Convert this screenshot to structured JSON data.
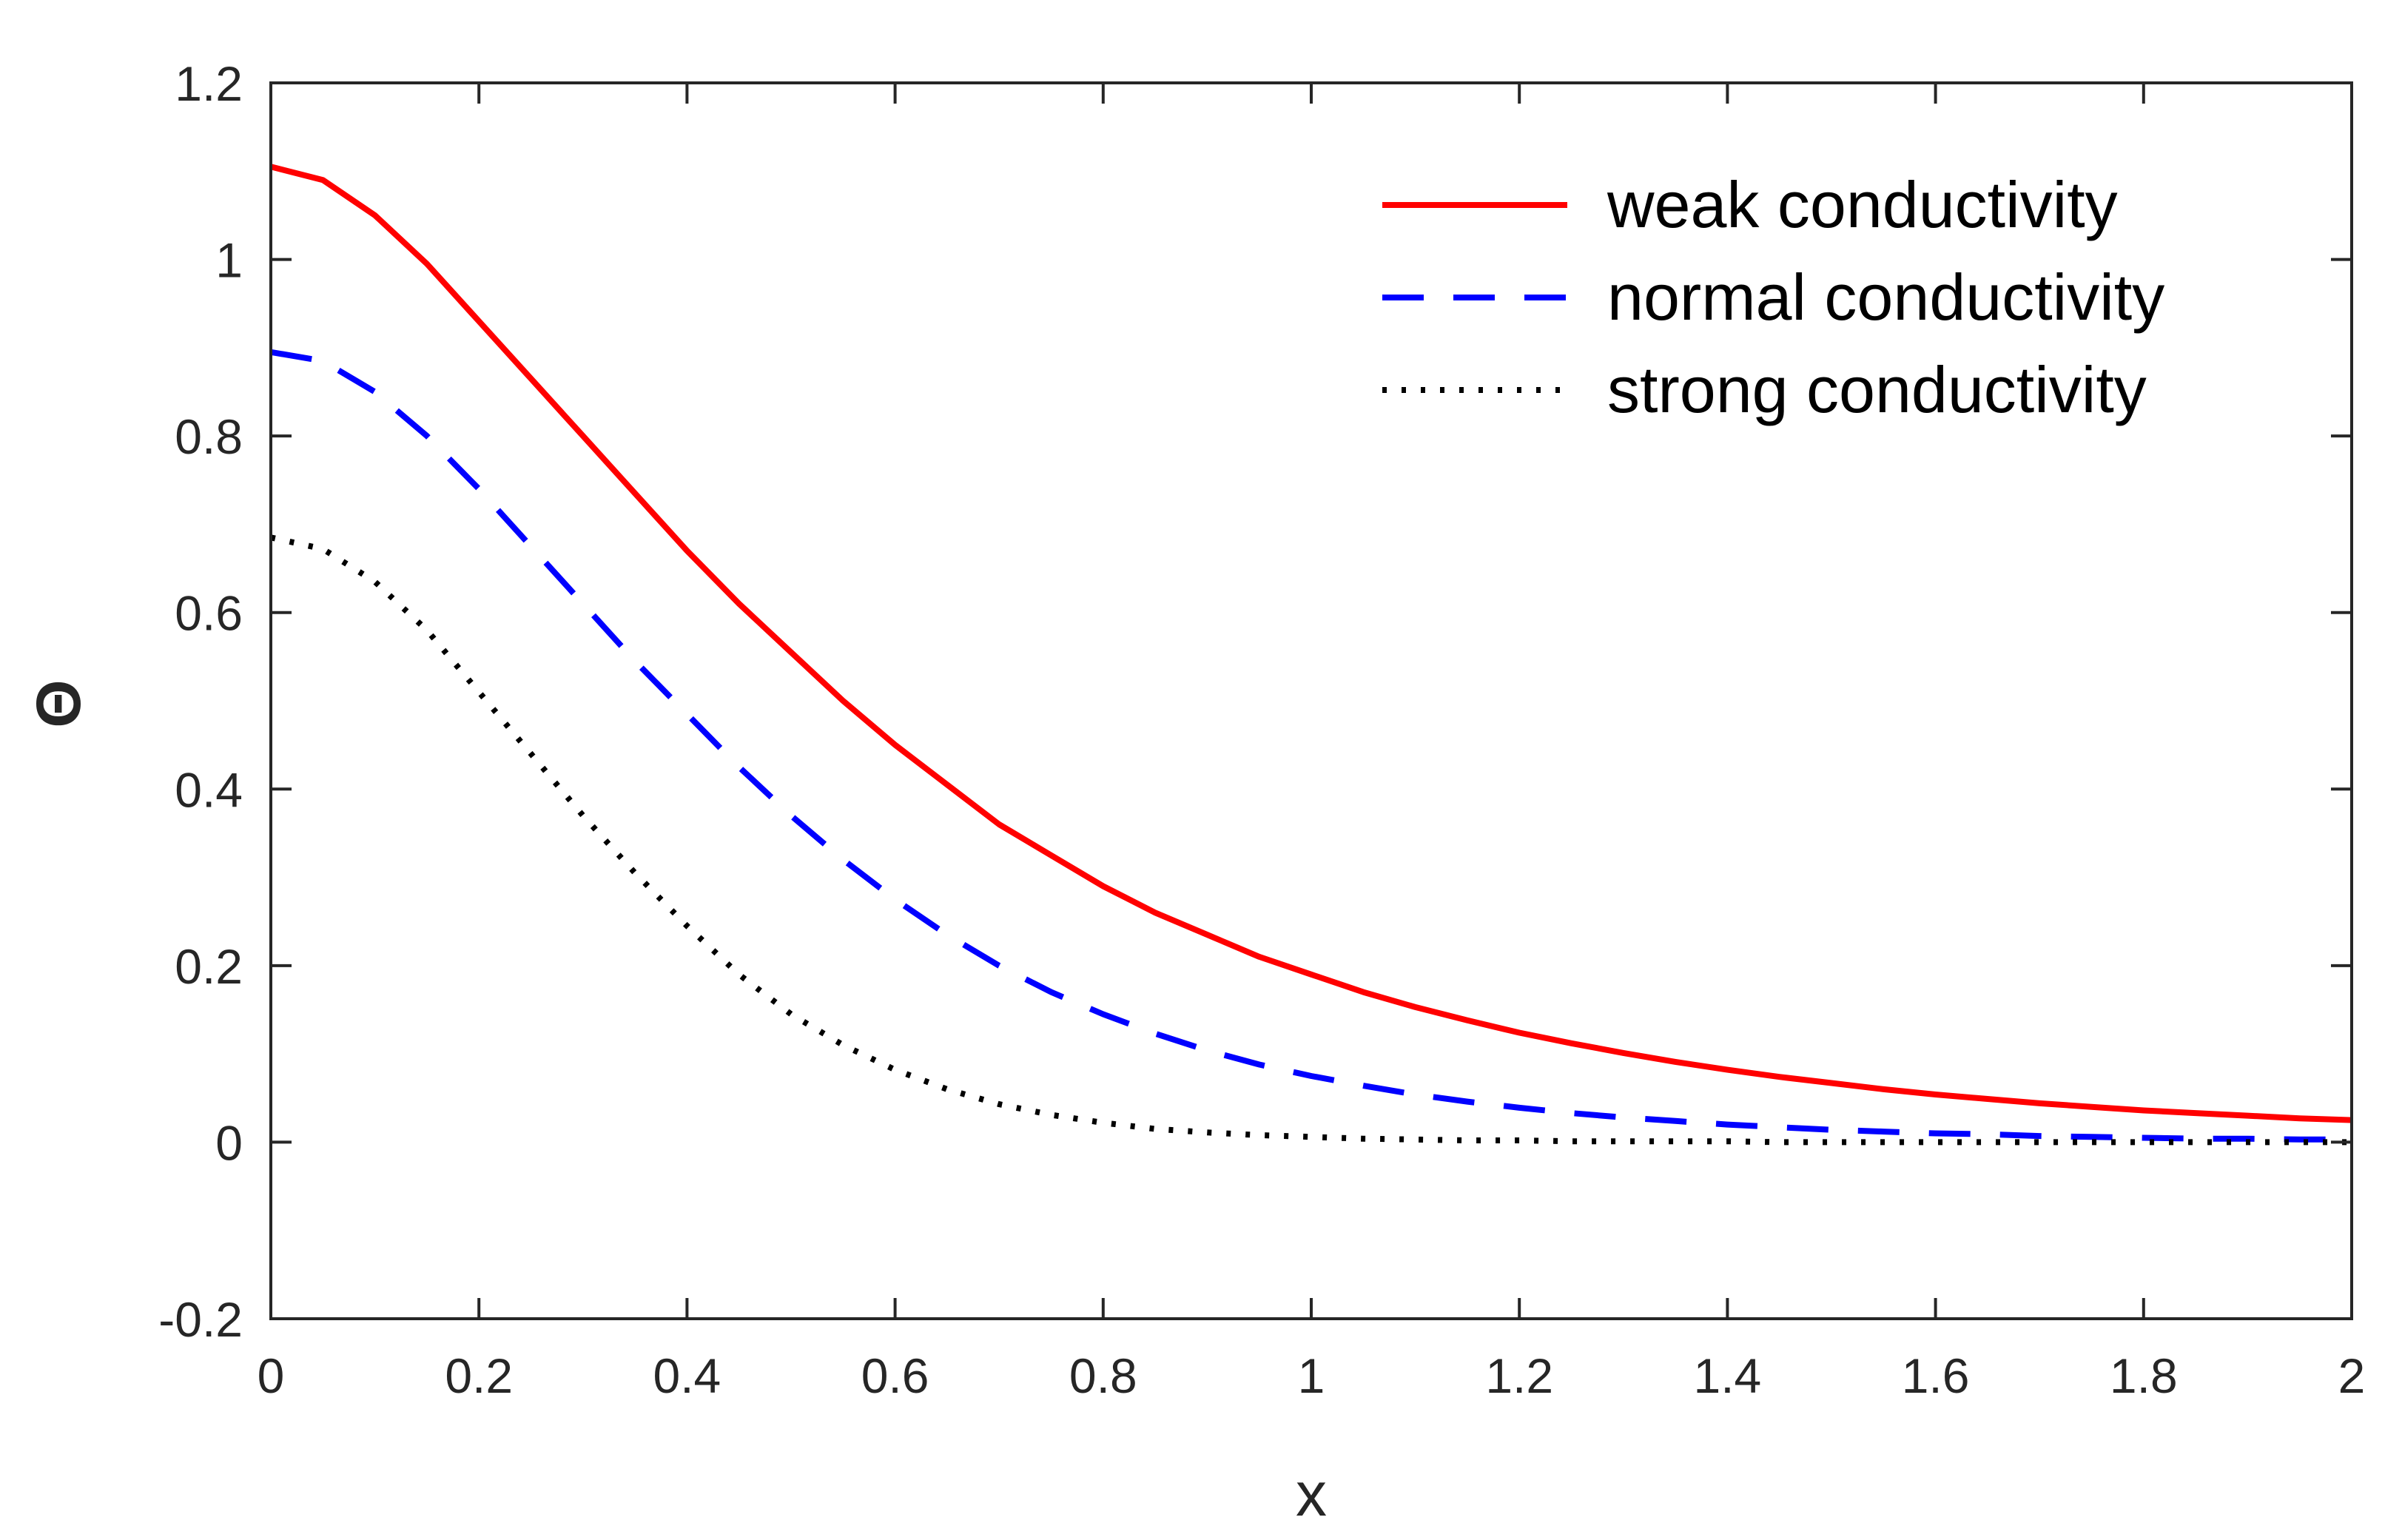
{
  "chart_data": {
    "type": "line",
    "title": "",
    "xlabel": "x",
    "ylabel": "Θ",
    "xlim": [
      0,
      2
    ],
    "ylim": [
      -0.2,
      1.2
    ],
    "xticks": [
      0,
      0.2,
      0.4,
      0.6,
      0.8,
      1,
      1.2,
      1.4,
      1.6,
      1.8,
      2
    ],
    "xtick_labels": [
      "0",
      "0.2",
      "0.4",
      "0.6",
      "0.8",
      "1",
      "1.2",
      "1.4",
      "1.6",
      "1.8",
      "2"
    ],
    "yticks": [
      -0.2,
      0,
      0.2,
      0.4,
      0.6,
      0.8,
      1,
      1.2
    ],
    "ytick_labels": [
      "-0.2",
      "0",
      "0.2",
      "0.4",
      "0.6",
      "0.8",
      "1",
      "1.2"
    ],
    "grid": false,
    "legend_position": "top-right",
    "x": [
      0,
      0.05,
      0.1,
      0.15,
      0.2,
      0.25,
      0.3,
      0.35,
      0.4,
      0.45,
      0.5,
      0.55,
      0.6,
      0.65,
      0.7,
      0.75,
      0.8,
      0.85,
      0.9,
      0.95,
      1.0,
      1.05,
      1.1,
      1.15,
      1.2,
      1.25,
      1.3,
      1.35,
      1.4,
      1.45,
      1.5,
      1.55,
      1.6,
      1.65,
      1.7,
      1.75,
      1.8,
      1.85,
      1.9,
      1.95,
      2.0
    ],
    "series": [
      {
        "name": "weak conductivity",
        "color": "#ff0000",
        "style": "solid",
        "values": [
          1.105,
          1.09,
          1.05,
          0.995,
          0.93,
          0.865,
          0.8,
          0.735,
          0.67,
          0.61,
          0.555,
          0.5,
          0.45,
          0.405,
          0.36,
          0.325,
          0.29,
          0.26,
          0.235,
          0.21,
          0.19,
          0.17,
          0.153,
          0.138,
          0.124,
          0.112,
          0.101,
          0.091,
          0.082,
          0.074,
          0.067,
          0.06,
          0.054,
          0.049,
          0.044,
          0.04,
          0.036,
          0.033,
          0.03,
          0.027,
          0.025
        ]
      },
      {
        "name": "normal conductivity",
        "color": "#0000ff",
        "style": "dashed",
        "values": [
          0.895,
          0.885,
          0.85,
          0.8,
          0.74,
          0.675,
          0.61,
          0.545,
          0.485,
          0.425,
          0.37,
          0.32,
          0.275,
          0.235,
          0.2,
          0.17,
          0.145,
          0.123,
          0.104,
          0.088,
          0.075,
          0.064,
          0.054,
          0.046,
          0.039,
          0.033,
          0.028,
          0.024,
          0.02,
          0.017,
          0.014,
          0.012,
          0.01,
          0.009,
          0.007,
          0.006,
          0.005,
          0.004,
          0.004,
          0.003,
          0.003
        ]
      },
      {
        "name": "strong conductivity",
        "color": "#000000",
        "style": "dotted",
        "values": [
          0.685,
          0.672,
          0.635,
          0.58,
          0.51,
          0.44,
          0.37,
          0.305,
          0.245,
          0.19,
          0.145,
          0.11,
          0.082,
          0.06,
          0.043,
          0.031,
          0.022,
          0.015,
          0.011,
          0.008,
          0.006,
          0.004,
          0.003,
          0.002,
          0.002,
          0.001,
          0.001,
          0.001,
          0.001,
          0.0,
          0.0,
          0.0,
          0.0,
          0.0,
          0.0,
          0.0,
          0.0,
          0.0,
          0.0,
          0.0,
          0.0
        ]
      }
    ]
  }
}
